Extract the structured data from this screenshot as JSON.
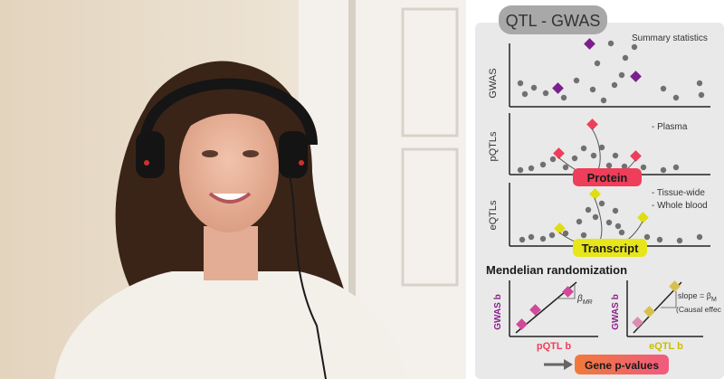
{
  "slide": {
    "title": "QTL - GWAS",
    "gwas_label": "GWAS",
    "pqtl_label": "pQTLs",
    "eqtl_label": "eQTLs",
    "summary_statistics": "Summary statistics",
    "plasma": "- Plasma",
    "tissue_wide": "- Tissue-wide",
    "whole_blood": "- Whole blood",
    "protein": "Protein",
    "transcript": "Transcript",
    "mr_heading": "Mendelian randomization",
    "gwas_b_left": "GWAS b",
    "gwas_b_right": "GWAS b",
    "pqtl_b": "pQTL b",
    "eqtl_b": "eQTL b",
    "beta_mr": "β",
    "beta_mr_sub": "MR",
    "slope_text": "slope = β",
    "slope_sub": "M",
    "causal_effect": "(Causal effec",
    "gene_pvalues": "Gene p-values"
  },
  "colors": {
    "slide_bg": "#e9e9e9",
    "title_pill": "#a8a8a8",
    "dot": "#707070",
    "gwas_hit": "#7b1f8c",
    "pqtl_hit": "#ee3e5a",
    "eqtl_hit": "#dede10",
    "protein_pill": "#ee3e5a",
    "transcript_pill": "#e6e61a",
    "axis_label_purple": "#8b1f8c",
    "axis_label_pink": "#ee3e5a",
    "axis_label_yellow": "#c8c000",
    "mr_point": "#d04a9a",
    "gene_pill_from": "#f07a3a",
    "gene_pill_to": "#f05a80"
  }
}
